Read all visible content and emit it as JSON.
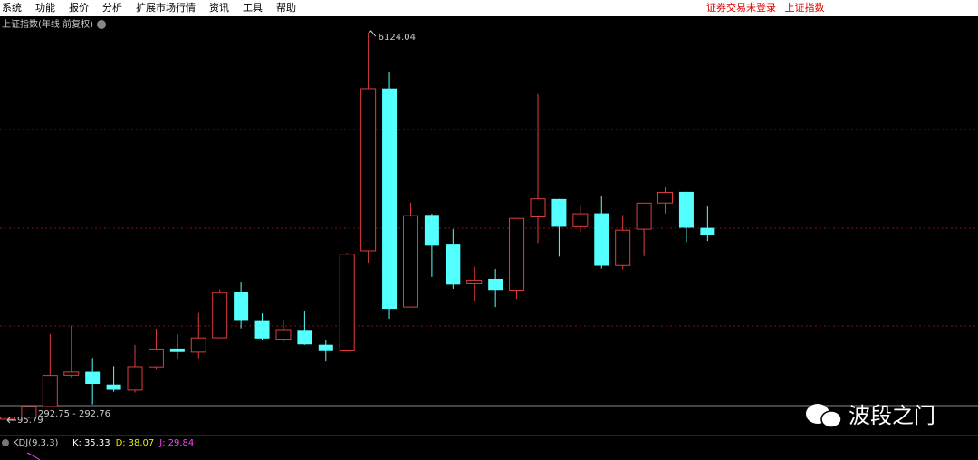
{
  "menu": {
    "items": [
      "系统",
      "功能",
      "报价",
      "分析",
      "扩展市场行情",
      "资讯",
      "工具",
      "帮助"
    ],
    "status": "证券交易未登录",
    "symbol": "上证指数"
  },
  "chart": {
    "title": "上证指数(年线 前复权)",
    "range_label": "292.75 - 292.76",
    "candles": [
      {
        "open": 96.05,
        "high": 127.61,
        "low": 95.79,
        "close": 127.61
      },
      {
        "open": 127.61,
        "high": 292.75,
        "low": 104.96,
        "close": 292.75
      },
      {
        "open": 293.74,
        "high": 1429.01,
        "low": 292.76,
        "close": 780.39
      },
      {
        "open": 784.13,
        "high": 1558.95,
        "low": 750.46,
        "close": 833.8
      },
      {
        "open": 837.7,
        "high": 1052.94,
        "low": 325.89,
        "close": 647.87
      },
      {
        "open": 637.72,
        "high": 926.41,
        "low": 524.43,
        "close": 555.29
      },
      {
        "open": 550.26,
        "high": 1258.69,
        "low": 512.83,
        "close": 917.01
      },
      {
        "open": 914.06,
        "high": 1510.18,
        "low": 870.18,
        "close": 1194.1
      },
      {
        "open": 1200.95,
        "high": 1422.98,
        "low": 1043.02,
        "close": 1146.7
      },
      {
        "open": 1144.89,
        "high": 1756.18,
        "low": 1047.83,
        "close": 1366.58
      },
      {
        "open": 1368.69,
        "high": 2125.72,
        "low": 1361.21,
        "close": 2073.48
      },
      {
        "open": 2077.07,
        "high": 2245.44,
        "low": 1514.86,
        "close": 1645.97
      },
      {
        "open": 1643.48,
        "high": 1748.89,
        "low": 1339.2,
        "close": 1357.65
      },
      {
        "open": 1347.43,
        "high": 1649.6,
        "low": 1307.4,
        "close": 1497.04
      },
      {
        "open": 1492.72,
        "high": 1783.01,
        "low": 1259.43,
        "close": 1266.5
      },
      {
        "open": 1260.78,
        "high": 1328.53,
        "low": 998.23,
        "close": 1161.06
      },
      {
        "open": 1163.88,
        "high": 2698.9,
        "low": 1161.91,
        "close": 2675.47
      },
      {
        "open": 2728.19,
        "high": 6124.04,
        "low": 2541.53,
        "close": 5261.56
      },
      {
        "open": 5265.0,
        "high": 5522.78,
        "low": 1664.93,
        "close": 1820.81
      },
      {
        "open": 1849.02,
        "high": 3478.01,
        "low": 1844.09,
        "close": 3277.14
      },
      {
        "open": 3289.75,
        "high": 3306.75,
        "low": 2319.74,
        "close": 2808.08
      },
      {
        "open": 2825.33,
        "high": 3067.46,
        "low": 2134.02,
        "close": 2199.42
      },
      {
        "open": 2212.0,
        "high": 2478.38,
        "low": 1949.46,
        "close": 2269.13
      },
      {
        "open": 2289.51,
        "high": 2444.8,
        "low": 1849.65,
        "close": 2115.98
      },
      {
        "open": 2112.13,
        "high": 3239.36,
        "low": 1974.38,
        "close": 3234.68
      },
      {
        "open": 3258.63,
        "high": 5178.19,
        "low": 2850.71,
        "close": 3539.18
      },
      {
        "open": 3536.59,
        "high": 3538.69,
        "low": 2638.3,
        "close": 3103.64
      },
      {
        "open": 3105.31,
        "high": 3450.49,
        "low": 3016.53,
        "close": 3307.17
      },
      {
        "open": 3314.03,
        "high": 3587.03,
        "low": 2449.2,
        "close": 2493.9
      },
      {
        "open": 2497.88,
        "high": 3288.45,
        "low": 2440.91,
        "close": 3050.12
      },
      {
        "open": 3066.34,
        "high": 3474.92,
        "low": 2646.8,
        "close": 3473.07
      },
      {
        "open": 3474.68,
        "high": 3731.69,
        "low": 3312.72,
        "close": 3639.78
      },
      {
        "open": 3649.15,
        "high": 3651.89,
        "low": 2863.65,
        "close": 3089.26
      },
      {
        "open": 3087.51,
        "high": 3418.95,
        "low": 2882.02,
        "close": 2974.93
      }
    ]
  },
  "indicator": {
    "name": "KDJ(9,3,3)",
    "lines": [
      {
        "label": "K:",
        "value": 35.33,
        "color": "#ffffff"
      },
      {
        "label": "D:",
        "value": 38.07,
        "color": "#e8e800"
      },
      {
        "label": "J:",
        "value": 29.84,
        "color": "#ff40ff"
      }
    ]
  },
  "watermark": "波段之门"
}
